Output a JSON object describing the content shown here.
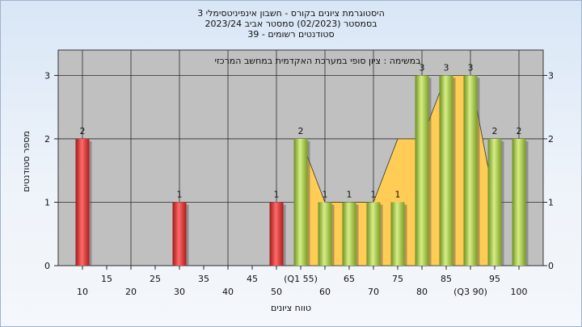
{
  "title_lines": [
    "היסטוגרמת ציונים בקורס - חשבון אינפיניטסימלי 3",
    "בסמסטר  (02/2023)  סמסטר אביב 2023/24",
    "סטודנטים רשומים - 39"
  ],
  "chart_data": {
    "type": "bar",
    "subtitle": "במשימה : ציון סופי במערכת האקדמית במחשב המרכזי",
    "ylabel": "מספר סטודנטים",
    "xlabel": "טווח ציונים",
    "ylim": [
      0,
      3.4
    ],
    "y_ticks": [
      0,
      1,
      2,
      3
    ],
    "x_ticks_upper": [
      {
        "x": 15,
        "label": "15"
      },
      {
        "x": 25,
        "label": "25"
      },
      {
        "x": 35,
        "label": "35"
      },
      {
        "x": 45,
        "label": "45"
      },
      {
        "x": 55,
        "label": "(Q1 55)"
      },
      {
        "x": 65,
        "label": "65"
      },
      {
        "x": 75,
        "label": "75"
      },
      {
        "x": 85,
        "label": "85"
      },
      {
        "x": 95,
        "label": "95"
      }
    ],
    "x_ticks_lower": [
      {
        "x": 10,
        "label": "10"
      },
      {
        "x": 20,
        "label": "20"
      },
      {
        "x": 30,
        "label": "30"
      },
      {
        "x": 40,
        "label": "40"
      },
      {
        "x": 50,
        "label": "50"
      },
      {
        "x": 60,
        "label": "60"
      },
      {
        "x": 70,
        "label": "70"
      },
      {
        "x": 80,
        "label": "80"
      },
      {
        "x": 90,
        "label": "(Q3 90)"
      },
      {
        "x": 100,
        "label": "100"
      }
    ],
    "bars": [
      {
        "x": 10,
        "value": 2,
        "label": "2",
        "color": "red"
      },
      {
        "x": 30,
        "value": 1,
        "label": "1",
        "color": "red"
      },
      {
        "x": 50,
        "value": 1,
        "label": "1",
        "color": "red"
      },
      {
        "x": 55,
        "value": 2,
        "label": "2",
        "color": "green"
      },
      {
        "x": 60,
        "value": 1,
        "label": "1",
        "color": "green"
      },
      {
        "x": 65,
        "value": 1,
        "label": "1",
        "color": "green"
      },
      {
        "x": 70,
        "value": 1,
        "label": "1",
        "color": "green"
      },
      {
        "x": 75,
        "value": 1,
        "label": "1",
        "color": "green"
      },
      {
        "x": 80,
        "value": 3,
        "label": "3",
        "color": "green"
      },
      {
        "x": 85,
        "value": 3,
        "label": "3",
        "color": "green"
      },
      {
        "x": 90,
        "value": 3,
        "label": "3",
        "color": "green"
      },
      {
        "x": 95,
        "value": 2,
        "label": "2",
        "color": "green"
      },
      {
        "x": 100,
        "value": 2,
        "label": "2",
        "color": "green"
      }
    ],
    "area": [
      {
        "x": 55,
        "y": 2
      },
      {
        "x": 60,
        "y": 1
      },
      {
        "x": 65,
        "y": 1
      },
      {
        "x": 70,
        "y": 1
      },
      {
        "x": 75,
        "y": 2
      },
      {
        "x": 80,
        "y": 2
      },
      {
        "x": 85,
        "y": 3
      },
      {
        "x": 90,
        "y": 3
      },
      {
        "x": 95,
        "y": 1
      }
    ],
    "grid": true,
    "colors": {
      "plot_bg": "#c0c0c0",
      "area_fill": "#ffcc55",
      "red_bar": "#e03030",
      "green_bar": "#9cc23a",
      "grid": "#2a2a2a"
    }
  }
}
